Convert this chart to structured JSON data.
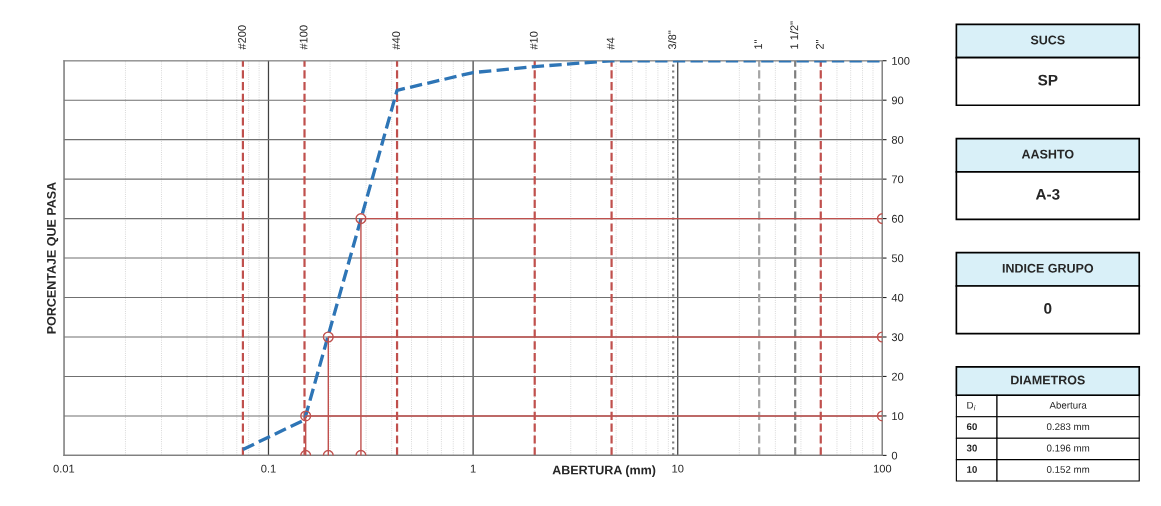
{
  "chart_data": [
    {
      "type": "line",
      "xlabel": "ABERTURA (mm)",
      "ylabel": "PORCENTAJE QUE PASA",
      "log": "x",
      "grid": true,
      "xlim": [
        0.01,
        100
      ],
      "xticks": [
        0.01,
        0.1,
        1,
        10,
        100
      ],
      "ylim": [
        0,
        100
      ],
      "yticks": [
        0,
        10,
        20,
        30,
        40,
        50,
        60,
        70,
        80,
        90,
        100
      ],
      "series": [
        {
          "type": "line",
          "color": "#2e75b6",
          "line_style": "dashed",
          "marker": "none",
          "x": [
            0.075,
            0.15,
            0.425,
            1,
            2,
            4.75,
            9.5,
            25,
            37.5,
            50,
            100
          ],
          "values": [
            1.5,
            9,
            92.5,
            97,
            98.5,
            100,
            100,
            100,
            100,
            100,
            100
          ]
        },
        {
          "type": "line",
          "color": "#c0504d",
          "line_style": "solid",
          "marker": "circle",
          "x": [
            0.283,
            0.283,
            100
          ],
          "values": [
            0,
            60,
            60
          ]
        },
        {
          "type": "line",
          "color": "#c0504d",
          "line_style": "solid",
          "marker": "circle",
          "x": [
            0.196,
            0.196,
            100
          ],
          "values": [
            0,
            30,
            30
          ]
        },
        {
          "type": "line",
          "color": "#c0504d",
          "line_style": "solid",
          "marker": "circle",
          "x": [
            0.152,
            0.152,
            100
          ],
          "values": [
            0,
            10,
            10
          ]
        }
      ],
      "annotations": [
        {
          "text": "#200",
          "x": 0.075,
          "y": 100
        },
        {
          "text": "#100",
          "x": 0.15,
          "y": 100
        },
        {
          "text": "#40",
          "x": 0.425,
          "y": 100
        },
        {
          "text": "#10",
          "x": 2,
          "y": 100
        },
        {
          "text": "#4",
          "x": 4.75,
          "y": 100
        },
        {
          "text": "3/8\"",
          "x": 9.5,
          "y": 100
        },
        {
          "text": "1\"",
          "x": 25,
          "y": 100
        },
        {
          "text": "1 1/2\"",
          "x": 37.5,
          "y": 100
        },
        {
          "text": "2\"",
          "x": 50,
          "y": 100
        }
      ],
      "ref_lines": [
        {
          "axis": "x",
          "value": 0.075,
          "color": "#c0504d",
          "line_style": "dashed"
        },
        {
          "axis": "x",
          "value": 0.15,
          "color": "#c0504d",
          "line_style": "dashed"
        },
        {
          "axis": "x",
          "value": 0.425,
          "color": "#c0504d",
          "line_style": "dashed"
        },
        {
          "axis": "x",
          "value": 2,
          "color": "#c0504d",
          "line_style": "dashed"
        },
        {
          "axis": "x",
          "value": 4.75,
          "color": "#c0504d",
          "line_style": "dashed"
        },
        {
          "axis": "x",
          "value": 9.5,
          "color": "#7f7f7f",
          "line_style": "dotted"
        },
        {
          "axis": "x",
          "value": 25,
          "color": "#a6a6a6",
          "line_style": "dashed"
        },
        {
          "axis": "x",
          "value": 37.5,
          "color": "#7f7f7f",
          "line_style": "dashed"
        },
        {
          "axis": "x",
          "value": 50,
          "color": "#c0504d",
          "line_style": "dashed"
        }
      ]
    },
    {
      "type": "other",
      "annotations": [
        "SUCS",
        "SP",
        "AASHTO",
        "A-3",
        "INDICE GRUPO",
        "0",
        "DIAMETROS",
        "D$_{i}$",
        "Abertura",
        "60",
        "0.283 mm",
        "30",
        "0.196 mm",
        "10",
        "0.152 mm"
      ]
    }
  ]
}
